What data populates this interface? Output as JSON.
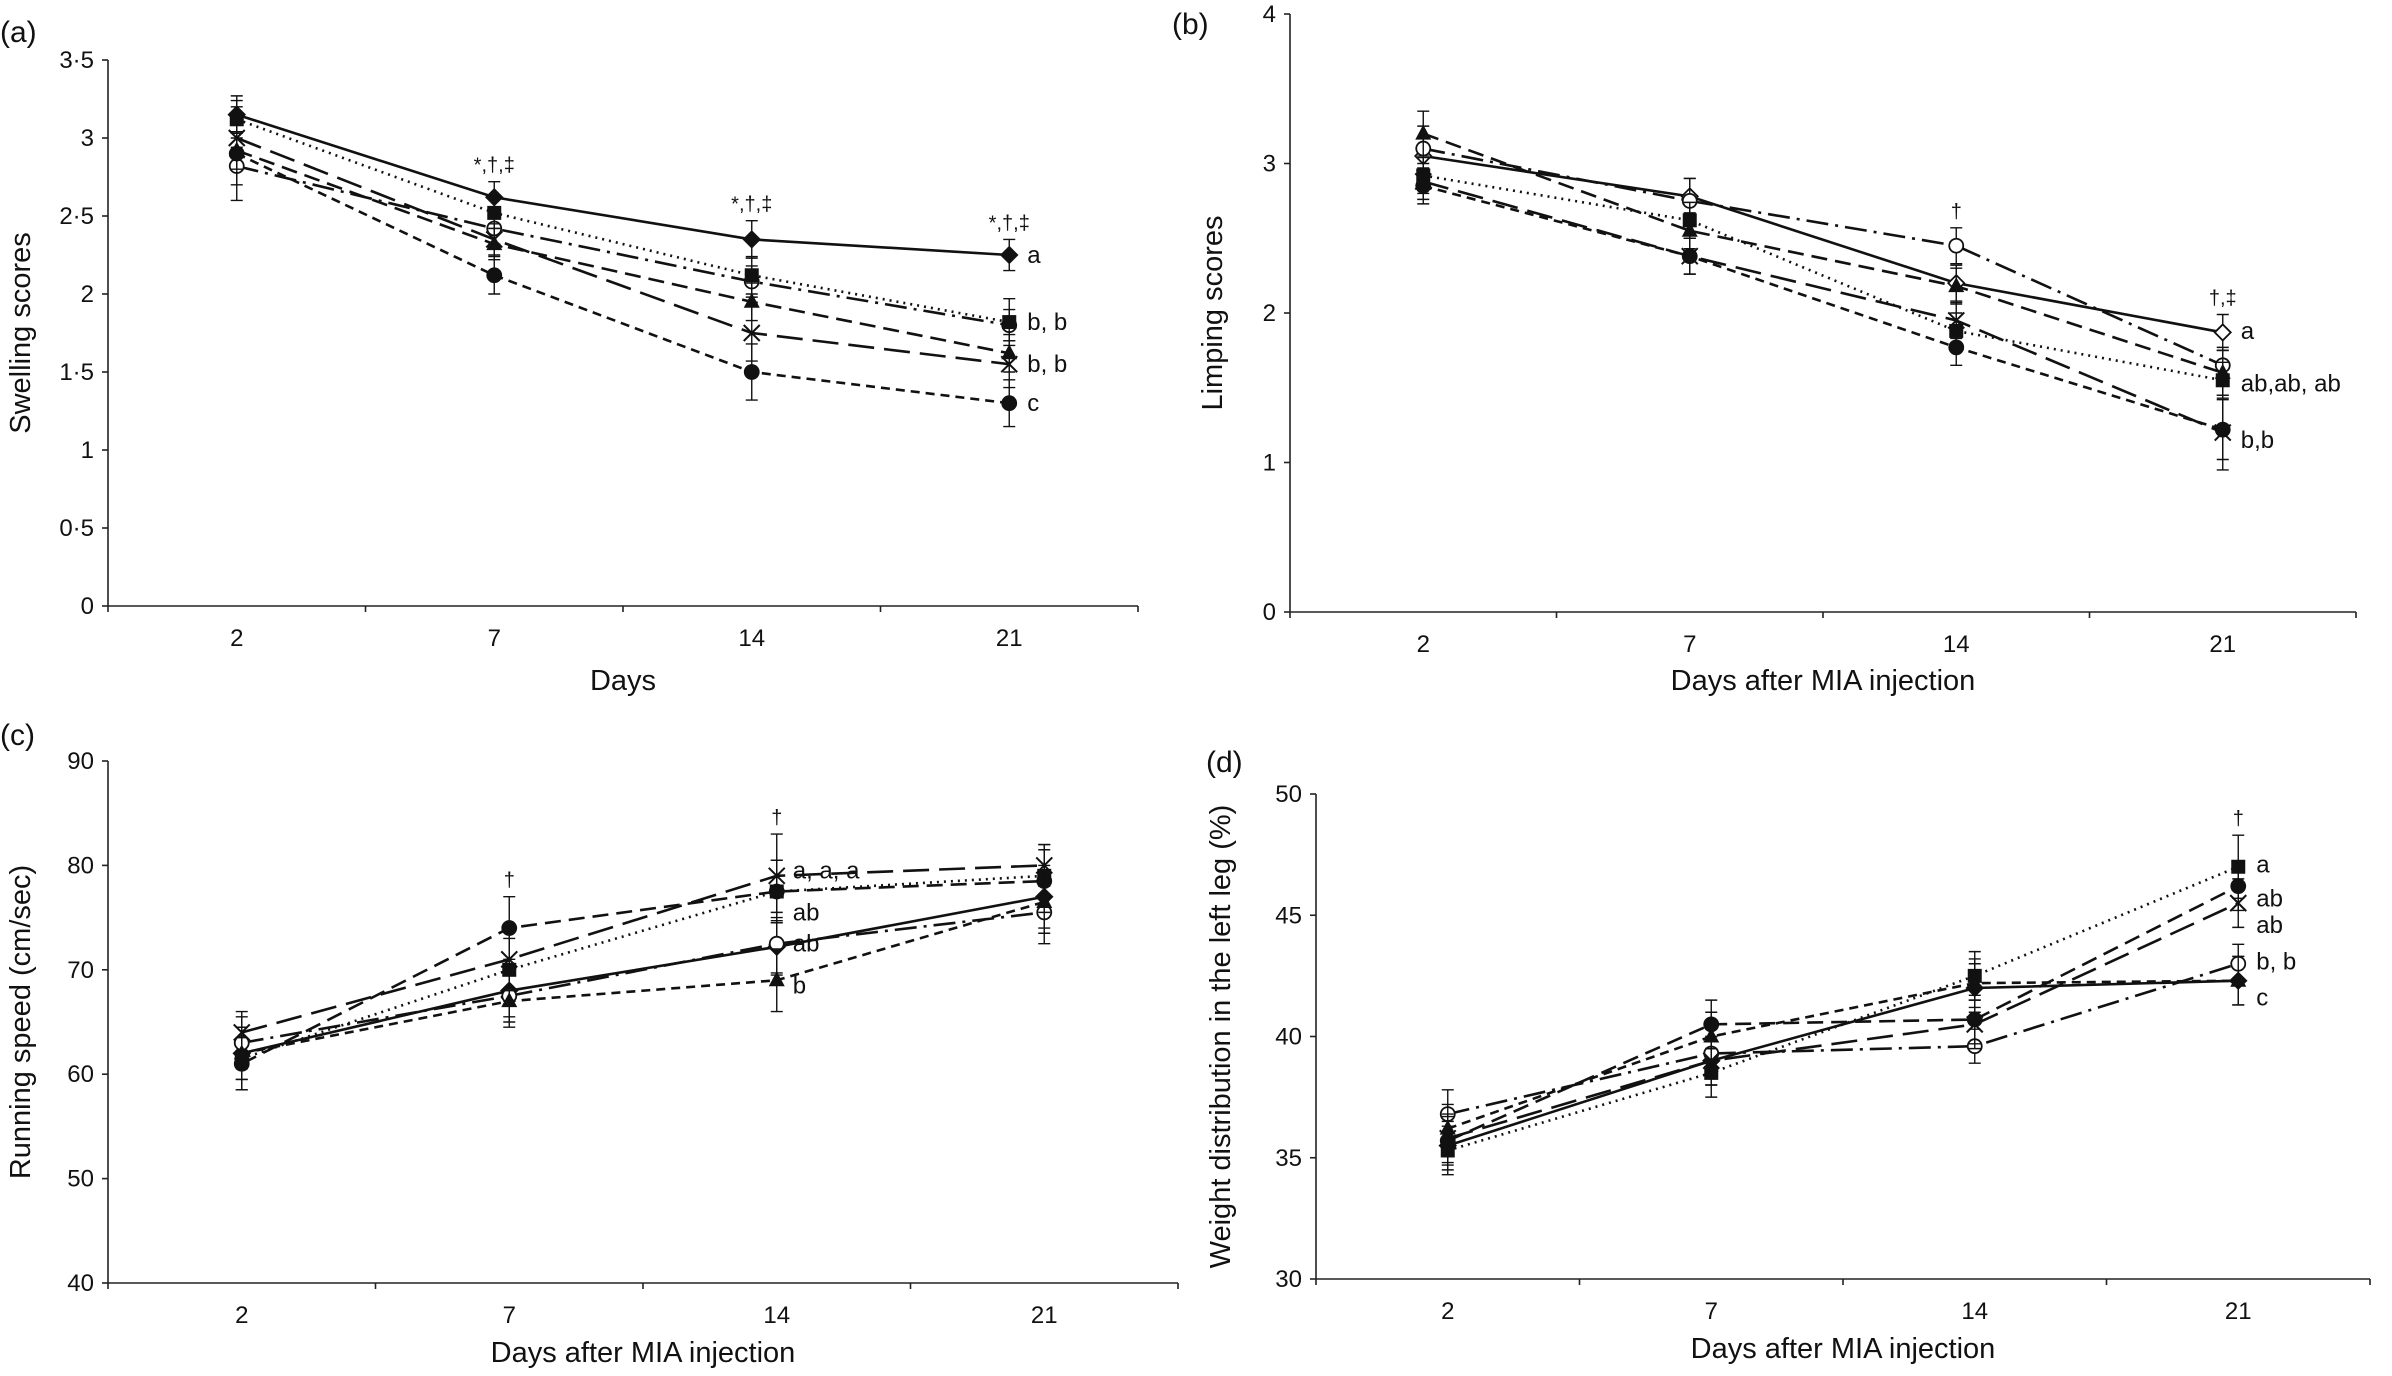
{
  "figure": {
    "background": "#ffffff",
    "ink": "#111111"
  },
  "chart_data": [
    {
      "panel": "(a)",
      "type": "line",
      "title": "",
      "xlabel": "Days",
      "ylabel": "Swelling scores",
      "categories": [
        "2",
        "7",
        "14",
        "21"
      ],
      "ylim": [
        0,
        3.5
      ],
      "yticks": [
        0,
        0.5,
        1,
        1.5,
        2,
        2.5,
        3,
        3.5
      ],
      "ytick_labels": [
        "0",
        "0·5",
        "1",
        "1·5",
        "2",
        "2·5",
        "3",
        "3·5"
      ],
      "series": [
        {
          "name": "filled diamond, solid",
          "dash": "solid",
          "marker": "diamond-filled",
          "values": [
            3.15,
            2.62,
            2.35,
            2.25
          ],
          "errors": [
            0.12,
            0.1,
            0.12,
            0.1
          ]
        },
        {
          "name": "open circle, dash-dot",
          "dash": "dashdot",
          "marker": "circle-open",
          "values": [
            2.82,
            2.42,
            2.08,
            1.8
          ],
          "errors": [
            0.12,
            0.1,
            0.1,
            0.1
          ]
        },
        {
          "name": "filled square, dotted",
          "dash": "dotted",
          "marker": "square-filled",
          "values": [
            3.12,
            2.52,
            2.12,
            1.82
          ],
          "errors": [
            0.12,
            0.1,
            0.12,
            0.15
          ]
        },
        {
          "name": "cross, long dash",
          "dash": "longdash",
          "marker": "cross",
          "values": [
            3.0,
            2.35,
            1.75,
            1.55
          ],
          "errors": [
            0.12,
            0.1,
            0.18,
            0.15
          ]
        },
        {
          "name": "filled triangle, medium dash",
          "dash": "mediumdash",
          "marker": "triangle-filled",
          "values": [
            2.92,
            2.32,
            1.95,
            1.62
          ],
          "errors": [
            0.12,
            0.1,
            0.12,
            0.12
          ]
        },
        {
          "name": "filled circle, short dash",
          "dash": "shortdash",
          "marker": "circle-filled",
          "values": [
            2.9,
            2.12,
            1.5,
            1.3
          ],
          "errors": [
            0.3,
            0.12,
            0.18,
            0.15
          ]
        }
      ],
      "significance": [
        {
          "x": "7",
          "text": "*,†,‡"
        },
        {
          "x": "14",
          "text": "*,†,‡"
        },
        {
          "x": "21",
          "text": "*,†,‡"
        }
      ],
      "end_labels": [
        {
          "y": 2.25,
          "text": "a"
        },
        {
          "y": 1.82,
          "text": "b, b"
        },
        {
          "y": 1.55,
          "text": "b, b"
        },
        {
          "y": 1.3,
          "text": "c"
        }
      ]
    },
    {
      "panel": "(b)",
      "type": "line",
      "title": "",
      "xlabel": "Days after MIA injection",
      "ylabel": "Limping scores",
      "categories": [
        "2",
        "7",
        "14",
        "21"
      ],
      "ylim": [
        0,
        4
      ],
      "yticks": [
        0,
        1,
        2,
        3,
        4
      ],
      "ytick_labels": [
        "0",
        "1",
        "2",
        "3",
        "4"
      ],
      "series": [
        {
          "name": "open diamond, solid",
          "dash": "solid",
          "marker": "diamond-open",
          "values": [
            3.05,
            2.78,
            2.2,
            1.87
          ],
          "errors": [
            0.12,
            0.12,
            0.12,
            0.12
          ]
        },
        {
          "name": "open circle, dash-dot",
          "dash": "dashdot",
          "marker": "circle-open",
          "values": [
            3.1,
            2.75,
            2.45,
            1.65
          ],
          "errors": [
            0.15,
            0.15,
            0.12,
            0.12
          ]
        },
        {
          "name": "filled square, dotted",
          "dash": "dotted",
          "marker": "square-filled",
          "values": [
            2.92,
            2.62,
            1.88,
            1.55
          ],
          "errors": [
            0.12,
            0.12,
            0.12,
            0.12
          ]
        },
        {
          "name": "filled triangle, medium dash",
          "dash": "mediumdash",
          "marker": "triangle-filled",
          "values": [
            3.2,
            2.55,
            2.18,
            1.6
          ],
          "errors": [
            0.15,
            0.12,
            0.12,
            0.15
          ]
        },
        {
          "name": "cross, long dash",
          "dash": "longdash",
          "marker": "cross",
          "values": [
            2.88,
            2.38,
            1.95,
            1.2
          ],
          "errors": [
            0.12,
            0.12,
            0.12,
            0.25
          ]
        },
        {
          "name": "filled circle, short dash",
          "dash": "shortdash",
          "marker": "circle-filled",
          "values": [
            2.85,
            2.38,
            1.77,
            1.22
          ],
          "errors": [
            0.12,
            0.12,
            0.12,
            0.2
          ]
        }
      ],
      "significance": [
        {
          "x": "14",
          "text": "†"
        },
        {
          "x": "21",
          "text": "†,‡"
        }
      ],
      "end_labels": [
        {
          "y": 1.88,
          "text": "a"
        },
        {
          "y": 1.53,
          "text": "ab,ab, ab"
        },
        {
          "y": 1.15,
          "text": "b,b"
        }
      ]
    },
    {
      "panel": "(c)",
      "type": "line",
      "title": "",
      "xlabel": "Days after MIA injection",
      "ylabel": "Running speed (cm/sec)",
      "categories": [
        "2",
        "7",
        "14",
        "21"
      ],
      "ylim": [
        40,
        90
      ],
      "yticks": [
        40,
        50,
        60,
        70,
        80,
        90
      ],
      "ytick_labels": [
        "40",
        "50",
        "60",
        "70",
        "80",
        "90"
      ],
      "series": [
        {
          "name": "filled diamond, solid",
          "dash": "solid",
          "marker": "diamond-filled",
          "values": [
            62,
            68,
            72.2,
            77
          ],
          "errors": [
            2.5,
            2.5,
            2.5,
            3
          ]
        },
        {
          "name": "open circle, dash-dot",
          "dash": "dashdot",
          "marker": "circle-open",
          "values": [
            63,
            67.5,
            72.5,
            75.5
          ],
          "errors": [
            2.5,
            2.5,
            3,
            3
          ]
        },
        {
          "name": "filled square, dotted",
          "dash": "dotted",
          "marker": "square-filled",
          "values": [
            61.5,
            70,
            77.5,
            79
          ],
          "errors": [
            3,
            3,
            3,
            3
          ]
        },
        {
          "name": "cross, long dash",
          "dash": "longdash",
          "marker": "cross",
          "values": [
            64,
            71,
            79,
            80
          ],
          "errors": [
            2,
            3,
            4,
            2
          ]
        },
        {
          "name": "filled circle, medium dash",
          "dash": "mediumdash",
          "marker": "circle-filled",
          "values": [
            61,
            74,
            77.5,
            78.5
          ],
          "errors": [
            2.5,
            3,
            3,
            3
          ]
        },
        {
          "name": "filled triangle, short dash",
          "dash": "shortdash",
          "marker": "triangle-filled",
          "values": [
            62,
            67,
            69,
            76.5
          ],
          "errors": [
            2.5,
            2.5,
            3,
            3
          ]
        }
      ],
      "significance": [
        {
          "x": "7",
          "text": "†"
        },
        {
          "x": "14",
          "text": "†"
        }
      ],
      "point_labels": [
        {
          "y": 79.5,
          "text": "a, a, a"
        },
        {
          "y": 75.5,
          "text": "ab"
        },
        {
          "y": 72.5,
          "text": "ab"
        },
        {
          "y": 68.5,
          "text": "b"
        }
      ]
    },
    {
      "panel": "(d)",
      "type": "line",
      "title": "",
      "xlabel": "Days after MIA injection",
      "ylabel": "Weight distribution in the left leg (%)",
      "categories": [
        "2",
        "7",
        "14",
        "21"
      ],
      "ylim": [
        30,
        50
      ],
      "yticks": [
        30,
        35,
        40,
        45,
        50
      ],
      "ytick_labels": [
        "30",
        "35",
        "40",
        "45",
        "50"
      ],
      "series": [
        {
          "name": "filled diamond, solid",
          "dash": "solid",
          "marker": "diamond-filled",
          "values": [
            35.5,
            39,
            42,
            42.3
          ],
          "errors": [
            1,
            1,
            1,
            1
          ]
        },
        {
          "name": "open circle, dash-dot",
          "dash": "dashdot",
          "marker": "circle-open",
          "values": [
            36.8,
            39.3,
            39.6,
            43
          ],
          "errors": [
            1,
            1,
            0.7,
            0.8
          ]
        },
        {
          "name": "filled square, dotted",
          "dash": "dotted",
          "marker": "square-filled",
          "values": [
            35.3,
            38.5,
            42.5,
            47
          ],
          "errors": [
            1,
            1,
            1,
            1.3
          ]
        },
        {
          "name": "filled circle, medium dash",
          "dash": "mediumdash",
          "marker": "circle-filled",
          "values": [
            35.7,
            40.5,
            40.7,
            46.2
          ],
          "errors": [
            1,
            1,
            1,
            1
          ]
        },
        {
          "name": "cross, long dash",
          "dash": "longdash",
          "marker": "cross",
          "values": [
            35.8,
            39,
            40.5,
            45.5
          ],
          "errors": [
            1,
            1,
            1,
            1
          ]
        },
        {
          "name": "filled triangle, short dash",
          "dash": "shortdash",
          "marker": "triangle-filled",
          "values": [
            36.2,
            40,
            42.2,
            42.3
          ],
          "errors": [
            1,
            1,
            1,
            1
          ]
        }
      ],
      "significance": [
        {
          "x": "21",
          "text": "†"
        }
      ],
      "end_labels": [
        {
          "y": 47.1,
          "text": "a"
        },
        {
          "y": 45.7,
          "text": "ab"
        },
        {
          "y": 44.6,
          "text": "ab"
        },
        {
          "y": 43.1,
          "text": "b, b"
        },
        {
          "y": 41.6,
          "text": "c"
        }
      ]
    }
  ]
}
